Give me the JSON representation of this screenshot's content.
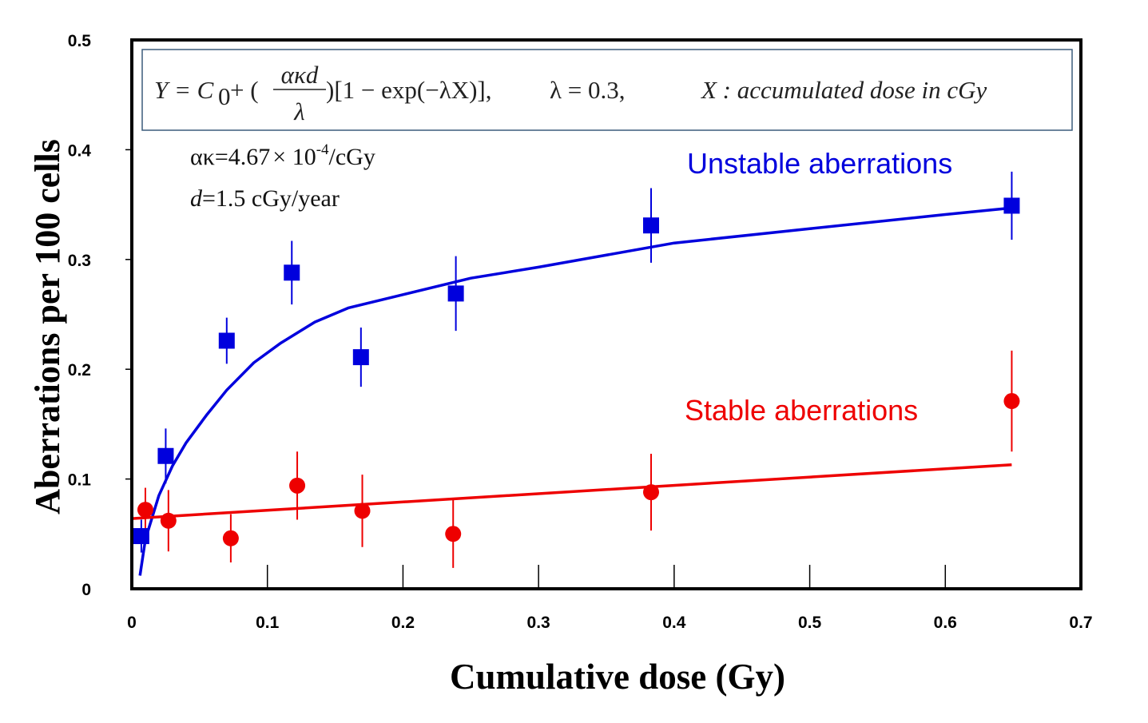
{
  "chart_data": {
    "type": "scatter",
    "title": "",
    "xlabel": "Cumulative dose  (Gy)",
    "ylabel": "Aberrations per 100 cells",
    "xlim": [
      0,
      0.7
    ],
    "ylim": [
      0,
      0.5
    ],
    "x_ticks": [
      "0",
      "0.1",
      "0.2",
      "0.3",
      "0.4",
      "0.5",
      "0.6",
      "0.7"
    ],
    "y_ticks": [
      "0",
      "0.1",
      "0.2",
      "0.3",
      "0.4",
      "0.5"
    ],
    "grid": false,
    "annotations": {
      "formula": {
        "lhs": "Y = C",
        "sub0": "0",
        "plus_open": " + (",
        "frac_num": "ακd",
        "frac_den": "λ",
        "close_bracket": ")[1 − exp(−λX)],",
        "lambda_eq": "λ = 0.3,",
        "x_def": "X : accumulated dose in cGy"
      },
      "alpha_kappa": {
        "prefix": "ακ=4.67",
        "times": "×",
        "base": " 10",
        "exp": "-4",
        "unit": "/cGy"
      },
      "dose_rate": {
        "var": "d",
        "rest": "=1.5 cGy/year"
      }
    },
    "series": [
      {
        "name": "Unstable aberrations",
        "color": "#0000dd",
        "marker": "square",
        "points": [
          {
            "x": 0.007,
            "y": 0.048,
            "err": 0.015
          },
          {
            "x": 0.025,
            "y": 0.121,
            "err": 0.025
          },
          {
            "x": 0.07,
            "y": 0.226,
            "err": 0.021
          },
          {
            "x": 0.118,
            "y": 0.288,
            "err": 0.029
          },
          {
            "x": 0.169,
            "y": 0.211,
            "err": 0.027
          },
          {
            "x": 0.239,
            "y": 0.269,
            "err": 0.034
          },
          {
            "x": 0.383,
            "y": 0.331,
            "err": 0.034
          },
          {
            "x": 0.649,
            "y": 0.349,
            "err": 0.031
          }
        ],
        "fit": {
          "x": [
            0.006,
            0.01,
            0.02,
            0.03,
            0.04,
            0.055,
            0.07,
            0.09,
            0.11,
            0.135,
            0.16,
            0.2,
            0.25,
            0.3,
            0.4,
            0.5,
            0.6,
            0.649
          ],
          "y": [
            0.012,
            0.045,
            0.085,
            0.112,
            0.133,
            0.158,
            0.181,
            0.206,
            0.224,
            0.243,
            0.256,
            0.268,
            0.283,
            0.293,
            0.315,
            0.328,
            0.341,
            0.347
          ]
        }
      },
      {
        "name": "Stable aberrations",
        "color": "#ee0000",
        "marker": "circle",
        "points": [
          {
            "x": 0.01,
            "y": 0.072,
            "err": 0.02
          },
          {
            "x": 0.027,
            "y": 0.062,
            "err": 0.028
          },
          {
            "x": 0.073,
            "y": 0.046,
            "err": 0.022
          },
          {
            "x": 0.122,
            "y": 0.094,
            "err": 0.031
          },
          {
            "x": 0.17,
            "y": 0.071,
            "err": 0.033
          },
          {
            "x": 0.237,
            "y": 0.05,
            "err": 0.031
          },
          {
            "x": 0.383,
            "y": 0.088,
            "err": 0.035
          },
          {
            "x": 0.649,
            "y": 0.171,
            "err": 0.046
          }
        ],
        "fit": {
          "x": [
            0.0,
            0.649
          ],
          "y": [
            0.064,
            0.113
          ]
        }
      }
    ]
  }
}
